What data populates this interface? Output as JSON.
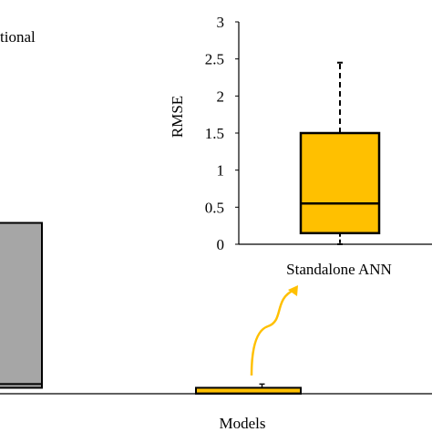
{
  "chart_data": [
    {
      "type": "box",
      "role": "main",
      "xlabel": "Models",
      "legend_fragment": "tional",
      "colors": {
        "conventional": "#a6a6a6",
        "standalone": "#ffc000",
        "whisker": "#000000"
      },
      "boxes": [
        {
          "name": "",
          "q1": 0.08,
          "median": 0.13,
          "q3": 2.3,
          "color": "#a6a6a6"
        },
        {
          "name": "Standalone ANN",
          "min": 0.0,
          "q1": 0.0,
          "median": 0.005,
          "q3": 0.08,
          "max": 0.13,
          "color": "#ffc000"
        }
      ]
    },
    {
      "type": "box",
      "role": "inset",
      "ylabel": "RMSE",
      "ylim": [
        0,
        3
      ],
      "yticks": [
        "0",
        "0.5",
        "1",
        "1.5",
        "2",
        "2.5",
        "3"
      ],
      "boxes": [
        {
          "name": "Standalone ANN",
          "min": 0.0,
          "q1": 0.15,
          "median": 0.55,
          "q3": 1.5,
          "max": 2.45,
          "color": "#ffc000"
        }
      ]
    }
  ]
}
